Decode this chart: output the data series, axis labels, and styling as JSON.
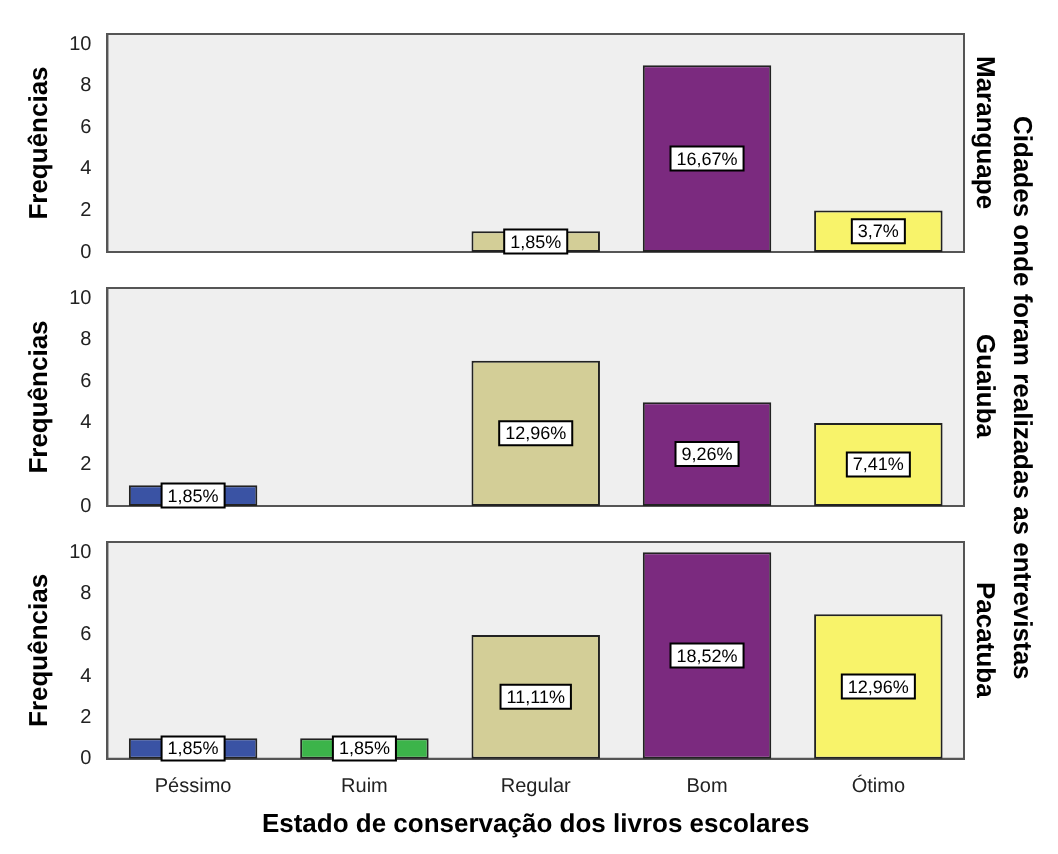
{
  "chart_data": [
    {
      "type": "bar",
      "title": "Maranguape",
      "ylabel": "Frequências",
      "categories": [
        "Péssimo",
        "Ruim",
        "Regular",
        "Bom",
        "Ótimo"
      ],
      "values": [
        0,
        0,
        1,
        9,
        2
      ],
      "colors": [
        "#3a53a4",
        "#3cb44a",
        "#d3ce97",
        "#7b2a7f",
        "#f8f36a"
      ],
      "ylim": [
        0,
        10.5
      ],
      "yticks": [
        0,
        2,
        4,
        6,
        8,
        10
      ],
      "tick_labels": "y",
      "annotations": [
        "Cidades onde foram realizadas as entrevistas",
        {
          "text": "1,85%",
          "x": "Regular",
          "y": 0.5
        },
        {
          "text": "16,67%",
          "x": "Bom",
          "y": 4.5
        },
        {
          "text": "3,7%",
          "x": "Ótimo",
          "y": 1
        }
      ]
    },
    {
      "type": "bar",
      "title": "Guaiuba",
      "ylabel": "Frequências",
      "categories": [
        "Péssimo",
        "Ruim",
        "Regular",
        "Bom",
        "Ótimo"
      ],
      "values": [
        1,
        0,
        7,
        5,
        4
      ],
      "colors": [
        "#3a53a4",
        "#3cb44a",
        "#d3ce97",
        "#7b2a7f",
        "#f8f36a"
      ],
      "ylim": [
        0,
        10.5
      ],
      "yticks": [
        0,
        2,
        4,
        6,
        8,
        10
      ],
      "tick_labels": "y",
      "annotations": [
        {
          "text": "1,85%",
          "x": "Péssimo",
          "y": 0.5
        },
        {
          "text": "12,96%",
          "x": "Regular",
          "y": 3.5
        },
        {
          "text": "9,26%",
          "x": "Bom",
          "y": 2.5
        },
        {
          "text": "7,41%",
          "x": "Ótimo",
          "y": 2
        }
      ]
    },
    {
      "type": "bar",
      "title": "Pacatuba",
      "ylabel": "Frequências",
      "xlabel": "Estado de conservação dos livros escolares",
      "categories": [
        "Péssimo",
        "Ruim",
        "Regular",
        "Bom",
        "Ótimo"
      ],
      "values": [
        1,
        1,
        6,
        10,
        7
      ],
      "colors": [
        "#3a53a4",
        "#3cb44a",
        "#d3ce97",
        "#7b2a7f",
        "#f8f36a"
      ],
      "ylim": [
        0,
        10.5
      ],
      "yticks": [
        0,
        2,
        4,
        6,
        8,
        10
      ],
      "annotations": [
        {
          "text": "1,85%",
          "x": "Péssimo",
          "y": 0.5
        },
        {
          "text": "1,85%",
          "x": "Ruim",
          "y": 0.5
        },
        {
          "text": "11,11%",
          "x": "Regular",
          "y": 3
        },
        {
          "text": "18,52%",
          "x": "Bom",
          "y": 5
        },
        {
          "text": "12,96%",
          "x": "Ótimo",
          "y": 3.5
        }
      ]
    }
  ]
}
